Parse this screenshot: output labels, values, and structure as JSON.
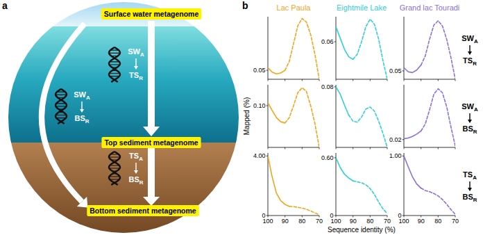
{
  "diagram": {
    "label": "a",
    "nodes": [
      {
        "label": "Surface water metagenome"
      },
      {
        "label": "Top sediment metagenome"
      },
      {
        "label": "Bottom sediment metagenome"
      }
    ],
    "edges": [
      {
        "from": [
          "SW",
          "A"
        ],
        "to": [
          "TS",
          "R"
        ]
      },
      {
        "from": [
          "SW",
          "A"
        ],
        "to": [
          "BS",
          "R"
        ]
      },
      {
        "from": [
          "TS",
          "A"
        ],
        "to": [
          "BS",
          "R"
        ]
      }
    ]
  },
  "panel_b": {
    "label": "b",
    "row_labels": [
      {
        "from": [
          "SW",
          "A"
        ],
        "to": [
          "TS",
          "R"
        ]
      },
      {
        "from": [
          "SW",
          "A"
        ],
        "to": [
          "BS",
          "R"
        ]
      },
      {
        "from": [
          "TS",
          "A"
        ],
        "to": [
          "BS",
          "R"
        ]
      }
    ]
  },
  "chart_data": [
    {
      "type": "line",
      "title": "Lac Paula",
      "x": [
        100,
        97.5,
        95,
        92.5,
        90,
        87.5,
        85,
        82.5,
        80,
        77.5,
        75,
        72.5,
        70
      ],
      "xlim": [
        100,
        70
      ],
      "xticks": [
        100,
        90,
        80,
        70
      ],
      "ylim": [
        0.04,
        0.11
      ],
      "yticks": [
        0.05
      ],
      "tick_labels": "y",
      "series": [
        {
          "color": "#f5a31a",
          "line_style": "solid",
          "values": [
            0.053,
            0.048,
            0.046,
            0.047,
            0.05,
            null,
            null,
            null,
            null,
            null,
            null,
            null,
            null
          ]
        },
        {
          "color": "#f5a31a",
          "line_style": "dashed",
          "values": [
            null,
            null,
            null,
            null,
            0.05,
            0.06,
            0.08,
            0.1,
            0.108,
            0.104,
            0.09,
            0.068,
            0.04
          ]
        }
      ]
    },
    {
      "type": "line",
      "title": "Eightmile Lake",
      "x": [
        100,
        97.5,
        95,
        92.5,
        90,
        87.5,
        85,
        82.5,
        80,
        77.5,
        75,
        72.5,
        70
      ],
      "xlim": [
        100,
        70
      ],
      "xticks": [
        100,
        90,
        80,
        70
      ],
      "ylim": [
        0.03,
        0.08
      ],
      "yticks": [
        0.06
      ],
      "tick_labels": "y",
      "series": [
        {
          "color": "#2ccfdc",
          "line_style": "solid",
          "values": [
            0.072,
            0.063,
            0.054,
            0.048,
            0.046,
            null,
            null,
            null,
            null,
            null,
            null,
            null,
            null
          ]
        },
        {
          "color": "#2ccfdc",
          "line_style": "dashed",
          "values": [
            null,
            null,
            null,
            null,
            0.046,
            0.05,
            0.06,
            0.072,
            0.078,
            0.074,
            0.062,
            0.045,
            0.03
          ]
        }
      ]
    },
    {
      "type": "line",
      "title": "Grand lac Touradi",
      "x": [
        100,
        97.5,
        95,
        92.5,
        90,
        87.5,
        85,
        82.5,
        80,
        77.5,
        75,
        72.5,
        70
      ],
      "xlim": [
        100,
        70
      ],
      "xticks": [
        100,
        90,
        80,
        70
      ],
      "ylim": [
        0.04,
        0.115
      ],
      "yticks": [
        0.05
      ],
      "tick_labels": "y",
      "series": [
        {
          "color": "#8b6ee0",
          "line_style": "solid",
          "values": [
            0.054,
            0.049,
            0.048,
            0.051,
            0.057,
            null,
            null,
            null,
            null,
            null,
            null,
            null,
            null
          ]
        },
        {
          "color": "#8b6ee0",
          "line_style": "dashed",
          "values": [
            null,
            null,
            null,
            null,
            0.057,
            0.068,
            0.088,
            0.105,
            0.11,
            0.104,
            0.088,
            0.066,
            0.04
          ]
        }
      ]
    },
    {
      "type": "line",
      "y_label": "Mapped (%)",
      "x": [
        100,
        97.5,
        95,
        92.5,
        90,
        87.5,
        85,
        82.5,
        80,
        77.5,
        75,
        72.5,
        70
      ],
      "xlim": [
        100,
        70
      ],
      "xticks": [
        100,
        90,
        80,
        70
      ],
      "ylim": [
        0.03,
        0.135
      ],
      "yticks": [
        {
          "value": 0.1,
          "label": "0.10"
        }
      ],
      "tick_labels": "y",
      "series": [
        {
          "color": "#f5a31a",
          "line_style": "solid",
          "values": [
            0.105,
            0.092,
            0.08,
            0.073,
            0.071,
            null,
            null,
            null,
            null,
            null,
            null,
            null,
            null
          ]
        },
        {
          "color": "#f5a31a",
          "line_style": "dashed",
          "values": [
            null,
            null,
            null,
            null,
            0.071,
            0.08,
            0.1,
            0.122,
            0.13,
            0.124,
            0.1,
            0.07,
            0.03
          ]
        }
      ]
    },
    {
      "type": "line",
      "x": [
        100,
        97.5,
        95,
        92.5,
        90,
        87.5,
        85,
        82.5,
        80,
        77.5,
        75,
        72.5,
        70
      ],
      "xlim": [
        100,
        70
      ],
      "xticks": [
        100,
        90,
        80,
        70
      ],
      "ylim": [
        0.02,
        0.082
      ],
      "yticks": [
        0.08
      ],
      "tick_labels": "y",
      "series": [
        {
          "color": "#2ccfdc",
          "line_style": "solid",
          "values": [
            0.08,
            0.073,
            0.062,
            0.052,
            null,
            null,
            null,
            null,
            null,
            null,
            null,
            null,
            null
          ]
        },
        {
          "color": "#2ccfdc",
          "line_style": "dashed",
          "values": [
            null,
            null,
            null,
            0.052,
            0.046,
            0.045,
            0.05,
            0.058,
            0.06,
            0.056,
            0.046,
            0.034,
            0.02
          ]
        }
      ]
    },
    {
      "type": "line",
      "x": [
        100,
        97.5,
        95,
        92.5,
        90,
        87.5,
        85,
        82.5,
        80,
        77.5,
        75,
        72.5,
        70
      ],
      "xlim": [
        100,
        70
      ],
      "xticks": [
        100,
        90,
        80,
        70
      ],
      "ylim": [
        0.01,
        0.09
      ],
      "yticks": [
        0.02
      ],
      "tick_labels": "y",
      "series": [
        {
          "color": "#8b6ee0",
          "line_style": "solid",
          "values": [
            0.021,
            0.022,
            0.024,
            0.027,
            0.031,
            null,
            null,
            null,
            null,
            null,
            null,
            null,
            null
          ]
        },
        {
          "color": "#8b6ee0",
          "line_style": "dashed",
          "values": [
            null,
            null,
            null,
            null,
            0.031,
            0.04,
            0.058,
            0.078,
            0.085,
            0.08,
            0.062,
            0.036,
            0.012
          ]
        }
      ]
    },
    {
      "type": "line",
      "x": [
        100,
        97.5,
        95,
        92.5,
        90,
        87.5,
        85,
        82.5,
        80,
        77.5,
        75,
        72.5,
        70
      ],
      "xlim": [
        100,
        70
      ],
      "xticks": [
        100,
        90,
        80,
        70
      ],
      "ylim": [
        0,
        4.2
      ],
      "yticks": [
        0,
        {
          "value": 4,
          "label": "4.00"
        }
      ],
      "series": [
        {
          "color": "#f5a31a",
          "line_style": "solid",
          "values": [
            4.0,
            2.6,
            1.5,
            1.0,
            0.75,
            0.62,
            null,
            null,
            null,
            null,
            null,
            null,
            null
          ]
        },
        {
          "color": "#f5a31a",
          "line_style": "dashed",
          "values": [
            null,
            null,
            null,
            null,
            null,
            0.62,
            0.6,
            0.55,
            0.5,
            0.42,
            0.3,
            0.18,
            0.05
          ]
        }
      ]
    },
    {
      "type": "line",
      "x_label": "Sequence identity (%)",
      "x": [
        100,
        97.5,
        95,
        92.5,
        90,
        87.5,
        85,
        82.5,
        80,
        77.5,
        75,
        72.5,
        70
      ],
      "xlim": [
        100,
        70
      ],
      "xticks": [
        100,
        90,
        80,
        70
      ],
      "ylim": [
        0,
        0.65
      ],
      "yticks": [
        0,
        {
          "value": 0.6,
          "label": "0.60"
        }
      ],
      "series": [
        {
          "color": "#2ccfdc",
          "line_style": "solid",
          "values": [
            0.6,
            0.5,
            0.43,
            0.39,
            0.36,
            null,
            null,
            null,
            null,
            null,
            null,
            null,
            null
          ]
        },
        {
          "color": "#2ccfdc",
          "line_style": "dashed",
          "values": [
            null,
            null,
            null,
            null,
            0.36,
            0.35,
            0.34,
            0.32,
            0.28,
            0.22,
            0.14,
            0.07,
            0.02
          ]
        }
      ]
    },
    {
      "type": "line",
      "x": [
        100,
        97.5,
        95,
        92.5,
        90,
        87.5,
        85,
        82.5,
        80,
        77.5,
        75,
        72.5,
        70
      ],
      "xlim": [
        100,
        70
      ],
      "xticks": [
        100,
        90,
        80,
        70
      ],
      "ylim": [
        0,
        1.05
      ],
      "yticks": [
        0,
        {
          "value": 1,
          "label": "1.00"
        }
      ],
      "series": [
        {
          "color": "#8b6ee0",
          "line_style": "solid",
          "values": [
            1.0,
            0.82,
            0.65,
            0.53,
            0.46,
            null,
            null,
            null,
            null,
            null,
            null,
            null,
            null
          ]
        },
        {
          "color": "#8b6ee0",
          "line_style": "dashed",
          "values": [
            null,
            null,
            null,
            null,
            0.46,
            0.42,
            0.4,
            0.37,
            0.33,
            0.27,
            0.19,
            0.1,
            0.02
          ]
        }
      ]
    }
  ]
}
